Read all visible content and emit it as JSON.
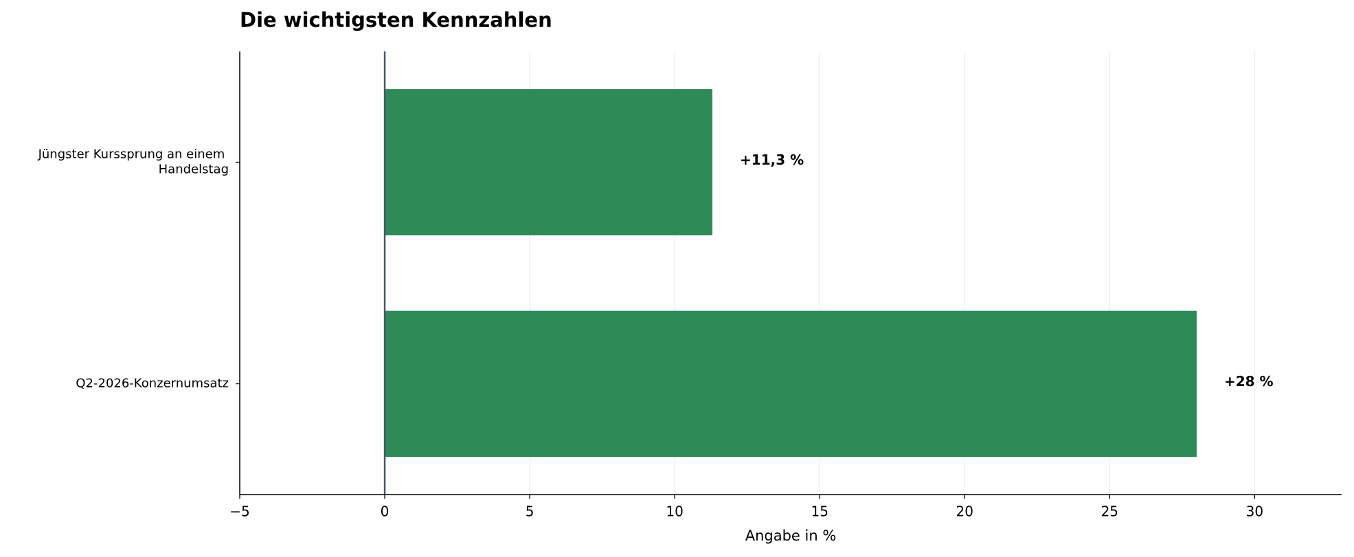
{
  "chart_data": {
    "type": "barh",
    "title": "Die wichtigsten Kennzahlen",
    "categories": [
      "Jüngster Kurssprung an einem Handelstag",
      "Q2-2026-Konzernumsatz"
    ],
    "values": [
      11.3,
      28
    ],
    "value_labels": [
      "+11,3 %",
      "+28 %"
    ],
    "color": "#2e8b57",
    "xlabel": "Angabe in %",
    "xlim": [
      -5,
      33
    ],
    "xticks": [
      {
        "value": -5,
        "label": "−5"
      },
      0,
      5,
      10,
      15,
      20,
      25,
      30
    ],
    "grid": true
  }
}
